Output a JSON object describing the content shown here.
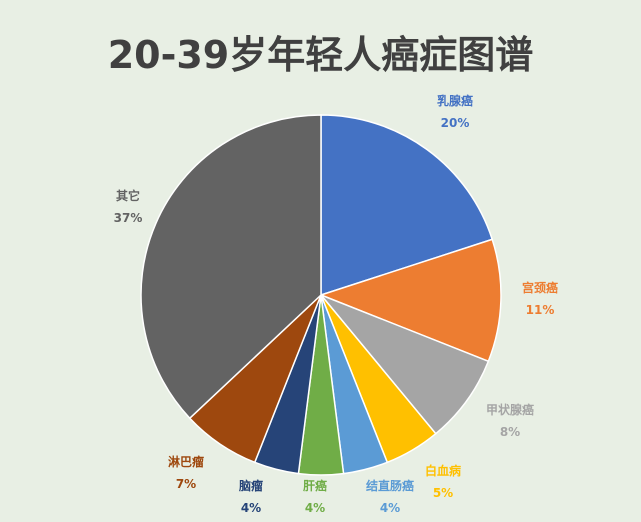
{
  "chart_data": {
    "type": "pie",
    "title": "20-39岁年轻人癌症图谱",
    "slices": [
      {
        "name": "乳腺癌",
        "label": "20%",
        "value": 20,
        "color": "#4472c4"
      },
      {
        "name": "宫颈癌",
        "label": "11%",
        "value": 11,
        "color": "#ed7d31"
      },
      {
        "name": "甲状腺癌",
        "label": "8%",
        "value": 8,
        "color": "#a5a5a5"
      },
      {
        "name": "白血病",
        "label": "5%",
        "value": 5,
        "color": "#ffc000"
      },
      {
        "name": "结直肠癌",
        "label": "4%",
        "value": 4,
        "color": "#5b9bd5"
      },
      {
        "name": "肝癌",
        "label": "4%",
        "value": 4,
        "color": "#70ad47"
      },
      {
        "name": "脑瘤",
        "label": "4%",
        "value": 4,
        "color": "#264478"
      },
      {
        "name": "淋巴瘤",
        "label": "7%",
        "value": 7,
        "color": "#9e480e"
      },
      {
        "name": "其它",
        "label": "37%",
        "value": 37,
        "color": "#636363"
      }
    ]
  }
}
